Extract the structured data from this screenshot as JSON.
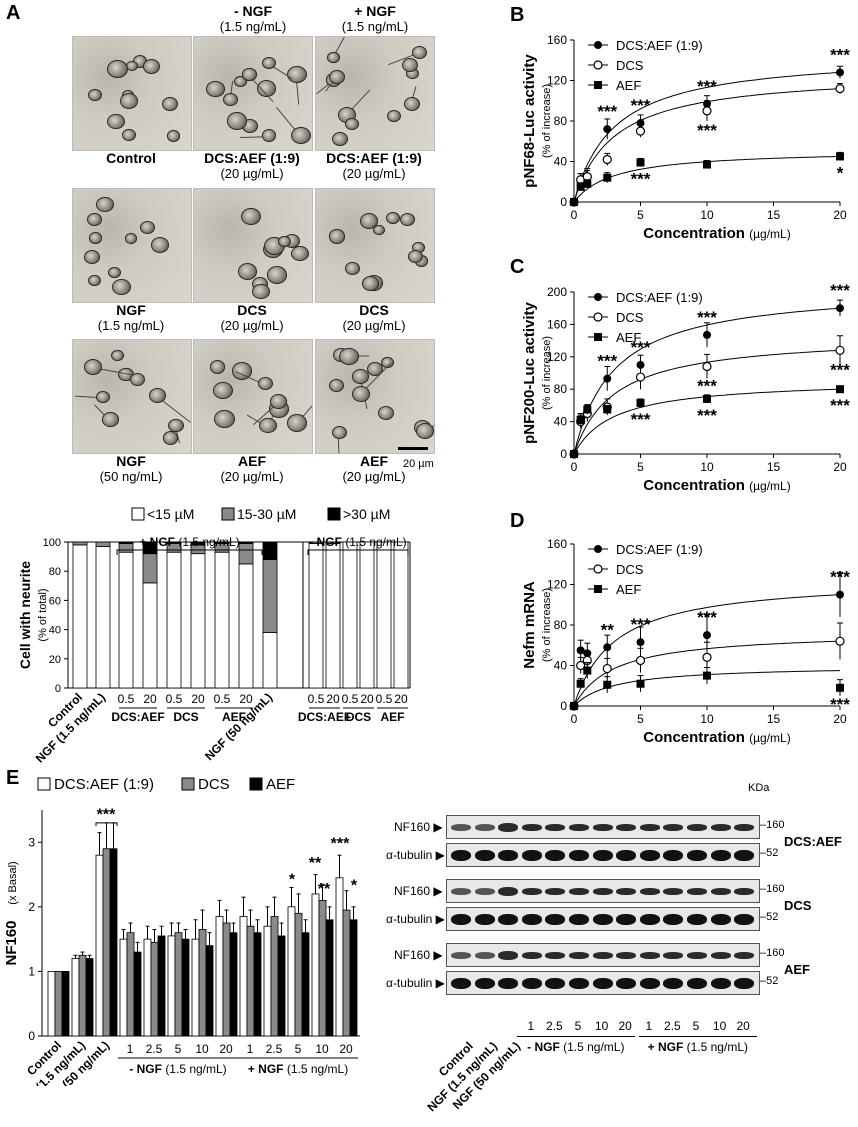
{
  "panels": {
    "A": "A",
    "B": "B",
    "C": "C",
    "D": "D",
    "E": "E"
  },
  "panelA": {
    "col_headers": [
      {
        "sign": "- NGF",
        "conc": "(1.5 ng/mL)"
      },
      {
        "sign": "+ NGF",
        "conc": "(1.5 ng/mL)"
      }
    ],
    "images": [
      {
        "name": "Control",
        "sub": ""
      },
      {
        "name": "DCS:AEF (1:9)",
        "sub": "(20 µg/mL)"
      },
      {
        "name": "DCS:AEF (1:9)",
        "sub": "(20 µg/mL)"
      },
      {
        "name": "NGF",
        "sub": "(1.5 ng/mL)"
      },
      {
        "name": "DCS",
        "sub": "(20 µg/mL)"
      },
      {
        "name": "DCS",
        "sub": "(20 µg/mL)"
      },
      {
        "name": "NGF",
        "sub": "(50 ng/mL)"
      },
      {
        "name": "AEF",
        "sub": "(20 µg/mL)"
      },
      {
        "name": "AEF",
        "sub": "(20 µg/mL)"
      }
    ],
    "scalebar": "20 µm"
  },
  "chart_data": [
    {
      "panel": "A",
      "type": "bar",
      "stacked": true,
      "ylabel": "Cell with neurite",
      "ylabel_unit": "(% of total)",
      "ylim": [
        0,
        100
      ],
      "yticks": [
        0,
        20,
        40,
        60,
        80,
        100
      ],
      "legend": [
        "<15 µM",
        "15-30  µM",
        ">30 µM"
      ],
      "legend_colors": [
        "#ffffff",
        "#8a8a8a",
        "#000000"
      ],
      "groups": [
        {
          "label": "+ NGF",
          "unit": "(1.5 ng/mL)"
        },
        {
          "label": "- NGF",
          "unit": "(1.5 ng/mL)"
        }
      ],
      "categories": [
        "Control",
        "NGF (1.5 ng/mL)",
        "0.5",
        "20",
        "0.5",
        "20",
        "0.5",
        "20",
        "NGF (50 ng/mL)",
        "0.5",
        "20",
        "0.5",
        "20",
        "0.5",
        "20"
      ],
      "category_groups": [
        "DCS:AEF",
        "DCS",
        "AEF",
        "DCS:AEF",
        "DCS",
        "AEF"
      ],
      "series": [
        {
          "name": "<15 µM",
          "values": [
            98,
            97,
            93,
            72,
            93,
            92,
            93,
            85,
            38,
            99,
            99,
            100,
            100,
            100,
            100
          ]
        },
        {
          "name": "15-30  µM",
          "values": [
            2,
            3,
            6,
            20,
            6,
            6,
            6,
            14,
            50,
            1,
            1,
            0,
            0,
            0,
            0
          ]
        },
        {
          "name": ">30 µM",
          "values": [
            0,
            0,
            1,
            8,
            1,
            2,
            1,
            1,
            12,
            0,
            0,
            0,
            0,
            0,
            0
          ]
        }
      ]
    },
    {
      "panel": "B",
      "type": "scatter",
      "ylabel": "pNF68-Luc activity",
      "ylabel_unit": "(% of increase)",
      "xlabel": "Concentration",
      "xlabel_unit": "(µg/mL)",
      "xlim": [
        0,
        20
      ],
      "ylim": [
        0,
        160
      ],
      "xticks": [
        0,
        5,
        10,
        15,
        20
      ],
      "yticks": [
        0,
        40,
        80,
        120,
        160
      ],
      "series": [
        {
          "name": "DCS:AEF (1:9)",
          "x": [
            0,
            0.5,
            1,
            2.5,
            5,
            10,
            20
          ],
          "y": [
            0,
            20,
            25,
            72,
            78,
            97,
            128
          ],
          "err": [
            2,
            8,
            8,
            10,
            8,
            8,
            6
          ],
          "marker": "filled-circle",
          "annot": [
            "",
            "",
            "",
            "***",
            "***",
            "***",
            "***"
          ]
        },
        {
          "name": "DCS",
          "x": [
            0,
            0.5,
            1,
            2.5,
            5,
            10,
            20
          ],
          "y": [
            0,
            22,
            25,
            42,
            70,
            90,
            112
          ],
          "err": [
            2,
            6,
            6,
            6,
            6,
            10,
            5
          ],
          "marker": "open-circle",
          "annot": [
            "",
            "",
            "",
            "",
            "",
            "***",
            ""
          ]
        },
        {
          "name": "AEF",
          "x": [
            0,
            0.5,
            1,
            2.5,
            5,
            10,
            20
          ],
          "y": [
            0,
            15,
            18,
            24,
            39,
            37,
            45
          ],
          "err": [
            2,
            4,
            4,
            5,
            4,
            4,
            4
          ],
          "marker": "filled-square",
          "annot": [
            "",
            "",
            "",
            "",
            "***",
            "",
            "*"
          ]
        }
      ]
    },
    {
      "panel": "C",
      "type": "scatter",
      "ylabel": "pNF200-Luc activity",
      "ylabel_unit": "(% of increase)",
      "xlabel": "Concentration",
      "xlabel_unit": "(µg/mL)",
      "xlim": [
        0,
        20
      ],
      "ylim": [
        0,
        200
      ],
      "xticks": [
        0,
        5,
        10,
        15,
        20
      ],
      "yticks": [
        0,
        40,
        80,
        120,
        160,
        200
      ],
      "series": [
        {
          "name": "DCS:AEF (1:9)",
          "x": [
            0,
            0.5,
            1,
            2.5,
            5,
            10,
            20
          ],
          "y": [
            0,
            42,
            50,
            93,
            110,
            147,
            180
          ],
          "err": [
            2,
            8,
            10,
            15,
            12,
            15,
            10
          ],
          "marker": "filled-circle",
          "annot": [
            "",
            "",
            "",
            "***",
            "***",
            "***",
            "***"
          ]
        },
        {
          "name": "DCS",
          "x": [
            0,
            0.5,
            1,
            2.5,
            5,
            10,
            20
          ],
          "y": [
            0,
            40,
            50,
            58,
            95,
            108,
            128
          ],
          "err": [
            2,
            8,
            8,
            10,
            15,
            15,
            18
          ],
          "marker": "open-circle",
          "annot": [
            "",
            "",
            "",
            "",
            "",
            "***",
            "***"
          ]
        },
        {
          "name": "AEF",
          "x": [
            0,
            0.5,
            1,
            2.5,
            5,
            10,
            20
          ],
          "y": [
            0,
            42,
            55,
            55,
            63,
            68,
            80
          ],
          "err": [
            2,
            6,
            6,
            5,
            5,
            5,
            4
          ],
          "marker": "filled-square",
          "annot": [
            "",
            "",
            "",
            "",
            "***",
            "***",
            "***"
          ]
        }
      ]
    },
    {
      "panel": "D",
      "type": "scatter",
      "ylabel": "Nefm mRNA",
      "ylabel_unit": "(% of increase)",
      "xlabel": "Concentration",
      "xlabel_unit": "(µg/mL)",
      "xlim": [
        0,
        20
      ],
      "ylim": [
        0,
        160
      ],
      "xticks": [
        0,
        5,
        10,
        15,
        20
      ],
      "yticks": [
        0,
        40,
        80,
        120,
        160
      ],
      "series": [
        {
          "name": "DCS:AEF (1:9)",
          "x": [
            0,
            0.5,
            1,
            2.5,
            5,
            10,
            20
          ],
          "y": [
            0,
            55,
            52,
            58,
            63,
            70,
            110
          ],
          "err": [
            2,
            10,
            10,
            12,
            15,
            20,
            22
          ],
          "marker": "filled-circle",
          "annot": [
            "",
            "",
            "",
            "**",
            "***",
            "***",
            "***"
          ]
        },
        {
          "name": "DCS",
          "x": [
            0,
            0.5,
            1,
            2.5,
            5,
            10,
            20
          ],
          "y": [
            0,
            40,
            45,
            37,
            45,
            48,
            64
          ],
          "err": [
            2,
            8,
            8,
            10,
            12,
            15,
            18
          ],
          "marker": "open-circle",
          "annot": [
            "",
            "",
            "",
            "",
            "",
            "",
            ""
          ]
        },
        {
          "name": "AEF",
          "x": [
            0,
            0.5,
            1,
            2.5,
            5,
            10,
            20
          ],
          "y": [
            0,
            22,
            35,
            21,
            22,
            30,
            18
          ],
          "err": [
            2,
            5,
            8,
            8,
            8,
            8,
            8
          ],
          "marker": "filled-square",
          "annot": [
            "",
            "",
            "",
            "",
            "",
            "",
            "***"
          ]
        }
      ]
    },
    {
      "panel": "E",
      "type": "bar",
      "ylabel": "NF160",
      "ylabel_unit": "(x Basal)",
      "ylim": [
        0,
        3.5
      ],
      "yticks": [
        0,
        1,
        2,
        3
      ],
      "legend": [
        "DCS:AEF (1:9)",
        "DCS",
        "AEF"
      ],
      "legend_colors": [
        "#ffffff",
        "#8a8a8a",
        "#000000"
      ],
      "categories": [
        "Control",
        "NGF (1.5 ng/mL)",
        "NGF (50 ng/mL)",
        "1",
        "2.5",
        "5",
        "10",
        "20",
        "1",
        "2.5",
        "5",
        "10",
        "20"
      ],
      "groups": [
        {
          "label": "- NGF",
          "unit": "(1.5 ng/mL)"
        },
        {
          "label": "+ NGF",
          "unit": "(1.5 ng/mL)"
        }
      ],
      "series": [
        {
          "name": "DCS:AEF (1:9)",
          "values": [
            1,
            1.2,
            2.8,
            1.5,
            1.5,
            1.55,
            1.5,
            1.85,
            1.85,
            1.7,
            2.0,
            2.2,
            2.45
          ],
          "err": [
            0,
            0.05,
            0.35,
            0.15,
            0.2,
            0.2,
            0.3,
            0.25,
            0.3,
            0.3,
            0.3,
            0.3,
            0.35
          ]
        },
        {
          "name": "DCS",
          "values": [
            1,
            1.25,
            2.9,
            1.6,
            1.45,
            1.6,
            1.65,
            1.75,
            1.7,
            1.85,
            1.9,
            2.1,
            1.95
          ],
          "err": [
            0,
            0.05,
            0.4,
            0.15,
            0.2,
            0.15,
            0.3,
            0.2,
            0.25,
            0.3,
            0.3,
            0.25,
            0.3
          ]
        },
        {
          "name": "AEF",
          "values": [
            1,
            1.2,
            2.9,
            1.3,
            1.55,
            1.5,
            1.4,
            1.6,
            1.6,
            1.55,
            1.6,
            1.8,
            1.8
          ],
          "err": [
            0,
            0.05,
            0.4,
            0.15,
            0.15,
            0.15,
            0.2,
            0.15,
            0.2,
            0.2,
            0.2,
            0.2,
            0.2
          ]
        }
      ],
      "annotations": [
        {
          "text": "***",
          "category": 2
        },
        {
          "text": "*",
          "category": 10
        },
        {
          "text": "**",
          "category": 11
        },
        {
          "text": "**",
          "category": 11
        },
        {
          "text": "***",
          "category": 12
        },
        {
          "text": "*",
          "category": 12
        }
      ]
    }
  ],
  "blots": {
    "kda": "KDa",
    "rows": [
      {
        "label": "NF160",
        "marker": "160",
        "group": "DCS:AEF"
      },
      {
        "label": "α-tubulin",
        "marker": "52",
        "group": ""
      },
      {
        "label": "NF160",
        "marker": "160",
        "group": "DCS"
      },
      {
        "label": "α-tubulin",
        "marker": "52",
        "group": ""
      },
      {
        "label": "NF160",
        "marker": "160",
        "group": "AEF"
      },
      {
        "label": "α-tubulin",
        "marker": "52",
        "group": ""
      }
    ],
    "lanes": [
      "Control",
      "NGF (1.5 ng/mL)",
      "NGF (50 ng/mL)",
      "1",
      "2.5",
      "5",
      "10",
      "20",
      "1",
      "2.5",
      "5",
      "10",
      "20"
    ],
    "groups": [
      {
        "label": "- NGF",
        "unit": "(1.5 ng/mL)"
      },
      {
        "label": "+ NGF",
        "unit": "(1.5 ng/mL)"
      }
    ]
  }
}
